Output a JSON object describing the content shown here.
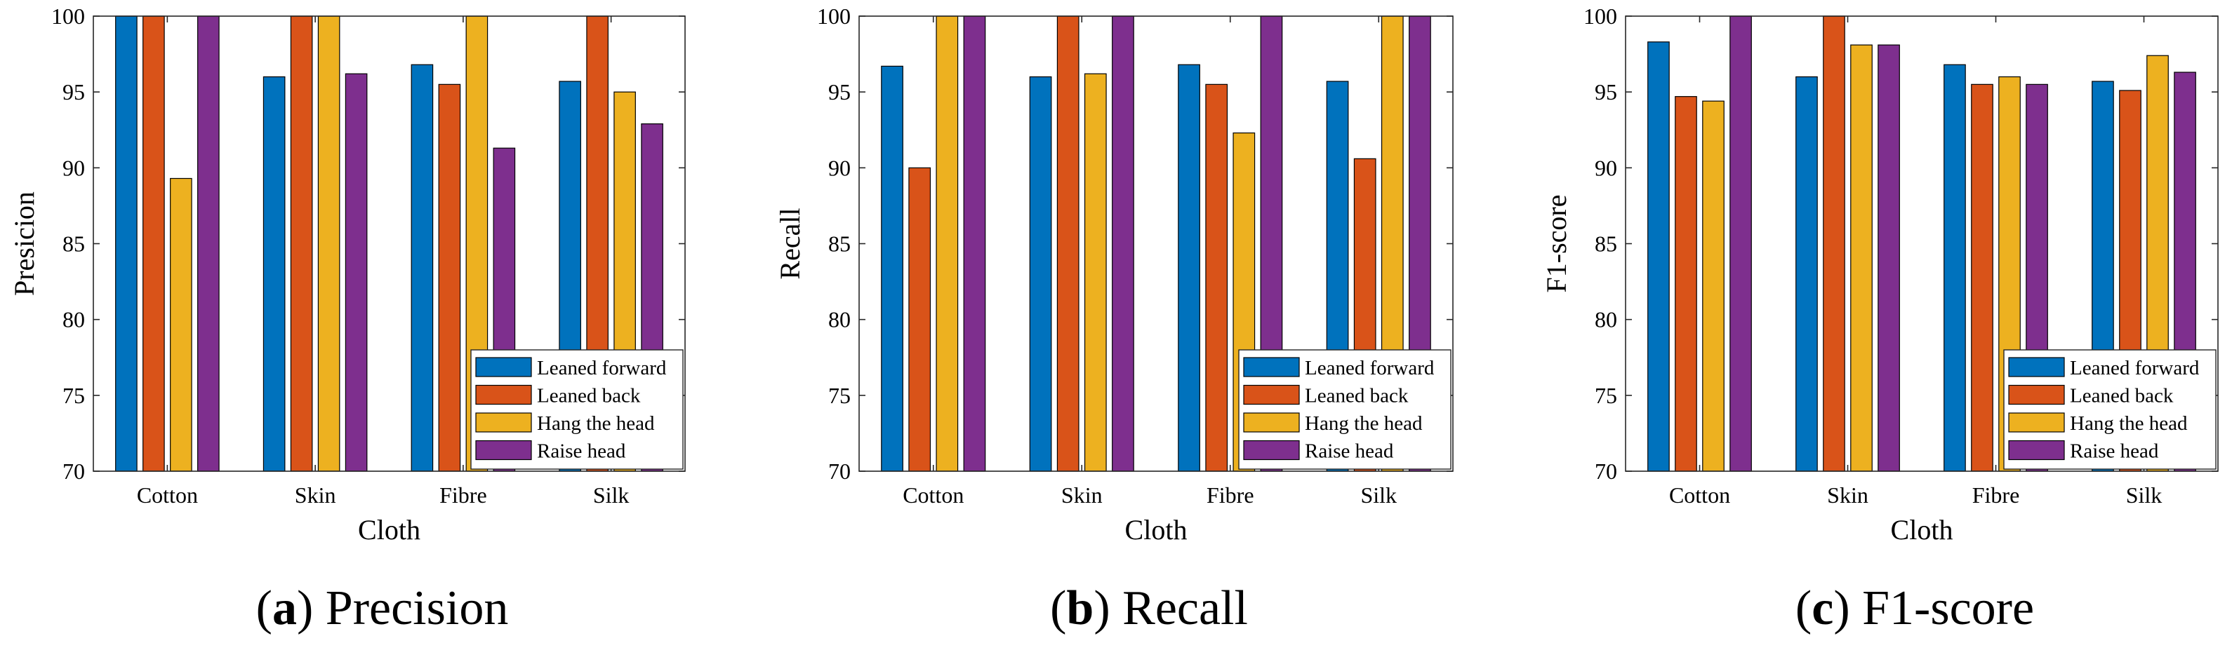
{
  "chart_data": [
    {
      "type": "bar",
      "panel": "a",
      "title": "Precision",
      "caption_letter": "a",
      "caption_text": "Precision",
      "xlabel": "Cloth",
      "ylabel": "Presicion",
      "ylim": [
        70,
        100
      ],
      "yticks": [
        70,
        75,
        80,
        85,
        90,
        95,
        100
      ],
      "categories": [
        "Cotton",
        "Skin",
        "Fibre",
        "Silk"
      ],
      "series": [
        {
          "name": "Leaned forward",
          "values": [
            100,
            96.0,
            96.8,
            95.7
          ]
        },
        {
          "name": "Leaned back",
          "values": [
            100,
            100,
            95.5,
            100
          ]
        },
        {
          "name": "Hang the head",
          "values": [
            89.3,
            100,
            100,
            95.0
          ]
        },
        {
          "name": "Raise head",
          "values": [
            100,
            96.2,
            91.3,
            92.9
          ]
        }
      ],
      "legend_position": "bottom-right",
      "grid": false
    },
    {
      "type": "bar",
      "panel": "b",
      "title": "Recall",
      "caption_letter": "b",
      "caption_text": "Recall",
      "xlabel": "Cloth",
      "ylabel": "Recall",
      "ylim": [
        70,
        100
      ],
      "yticks": [
        70,
        75,
        80,
        85,
        90,
        95,
        100
      ],
      "categories": [
        "Cotton",
        "Skin",
        "Fibre",
        "Silk"
      ],
      "series": [
        {
          "name": "Leaned forward",
          "values": [
            96.7,
            96.0,
            96.8,
            95.7
          ]
        },
        {
          "name": "Leaned back",
          "values": [
            90.0,
            100,
            95.5,
            90.6
          ]
        },
        {
          "name": "Hang the head",
          "values": [
            100,
            96.2,
            92.3,
            100
          ]
        },
        {
          "name": "Raise head",
          "values": [
            100,
            100,
            100,
            100
          ]
        }
      ],
      "legend_position": "bottom-right",
      "grid": false
    },
    {
      "type": "bar",
      "panel": "c",
      "title": "F1-score",
      "caption_letter": "c",
      "caption_text": "F1-score",
      "xlabel": "Cloth",
      "ylabel": "F1-score",
      "ylim": [
        70,
        100
      ],
      "yticks": [
        70,
        75,
        80,
        85,
        90,
        95,
        100
      ],
      "categories": [
        "Cotton",
        "Skin",
        "Fibre",
        "Silk"
      ],
      "series": [
        {
          "name": "Leaned forward",
          "values": [
            98.3,
            96.0,
            96.8,
            95.7
          ]
        },
        {
          "name": "Leaned back",
          "values": [
            94.7,
            100,
            95.5,
            95.1
          ]
        },
        {
          "name": "Hang the head",
          "values": [
            94.4,
            98.1,
            96.0,
            97.4
          ]
        },
        {
          "name": "Raise head",
          "values": [
            100,
            98.1,
            95.5,
            96.3
          ]
        }
      ],
      "legend_position": "bottom-right",
      "grid": false
    }
  ],
  "series_colors": [
    "#0072BD",
    "#D95319",
    "#EDB120",
    "#7E2F8E"
  ]
}
